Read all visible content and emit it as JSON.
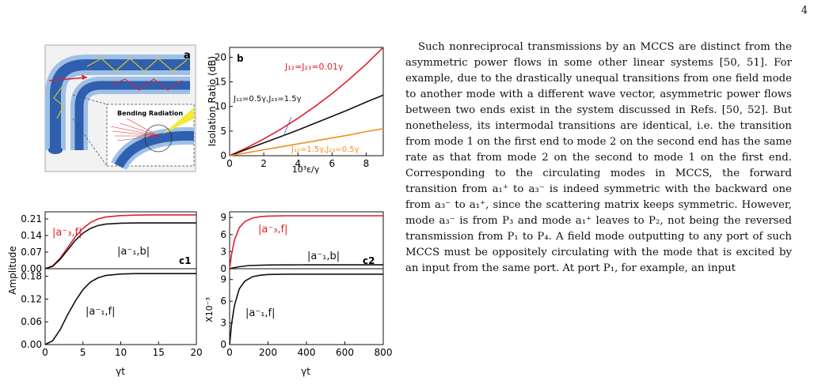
{
  "page_number": "4",
  "panel_a": {
    "label": "a",
    "callout": "Bending Radiation"
  },
  "panel_b": {
    "label": "b",
    "ylabel": "Isolation Ratio (dB)",
    "xlabel": "10³ε/γ",
    "yticks": [
      "0",
      "5",
      "10",
      "15",
      "20"
    ],
    "xticks": [
      "0",
      "2",
      "4",
      "6",
      "8"
    ],
    "lbl_red": "J₁₂=J₂₃=0.01γ",
    "lbl_black": "J₁₂=0.5γ,J₂₃=1.5γ",
    "lbl_orange": "J₁₂=1.5γ,J₂₃=0.5γ"
  },
  "panel_c1": {
    "label": "c1",
    "ylabel": "Amplitude",
    "xlabel": "γt",
    "top_yticks": [
      "0.00",
      "0.07",
      "0.14",
      "0.21"
    ],
    "bot_yticks": [
      "0.00",
      "0.06",
      "0.12",
      "0.18"
    ],
    "xticks": [
      "0",
      "5",
      "10",
      "15",
      "20"
    ],
    "lbl_a3f": "|a⁻₃,f|",
    "lbl_a1b": "|a⁻₁,b|",
    "lbl_a1f": "|a⁻₁,f|"
  },
  "panel_c2": {
    "label": "c2",
    "ylabel": "X10⁻³",
    "xlabel": "γt",
    "top_yticks": [
      "0",
      "3",
      "6",
      "9"
    ],
    "bot_yticks": [
      "0",
      "3",
      "6",
      "9"
    ],
    "xticks": [
      "0",
      "200",
      "400",
      "600",
      "800"
    ],
    "lbl_a3f": "|a⁻₃,f|",
    "lbl_a1b": "|a⁻₁,b|",
    "lbl_a1f": "|a⁻₁,f|"
  },
  "colors": {
    "red": "#e0202a",
    "black": "#111111",
    "orange": "#f0901e",
    "blue": "#2f5fae",
    "lightblue": "#9ec0e6"
  },
  "chart_data": [
    {
      "type": "line",
      "id": "b",
      "xlim": [
        0,
        9
      ],
      "ylim": [
        0,
        22
      ],
      "series": [
        {
          "name": "J₁₂=J₂₃=0.01γ",
          "color": "#e0202a",
          "x": [
            0,
            1,
            2,
            3,
            4,
            5,
            6,
            7,
            8,
            9
          ],
          "y": [
            0,
            1.6,
            3.4,
            5.4,
            7.6,
            10.0,
            12.6,
            15.5,
            18.6,
            22.0
          ]
        },
        {
          "name": "J₁₂=0.5γ,J₂₃=1.5γ",
          "color": "#111111",
          "x": [
            0,
            1,
            2,
            3,
            4,
            5,
            6,
            7,
            8,
            9
          ],
          "y": [
            0,
            1.3,
            2.6,
            3.9,
            5.2,
            6.6,
            8.0,
            9.4,
            10.9,
            12.3
          ]
        },
        {
          "name": "J₁₂=1.5γ,J₂₃=0.5γ",
          "color": "#f0901e",
          "x": [
            0,
            1,
            2,
            3,
            4,
            5,
            6,
            7,
            8,
            9
          ],
          "y": [
            0,
            0.6,
            1.2,
            1.8,
            2.4,
            3.0,
            3.6,
            4.2,
            4.9,
            5.5
          ]
        }
      ]
    },
    {
      "type": "line",
      "id": "c1_top",
      "xlim": [
        0,
        20
      ],
      "ylim": [
        0,
        0.24
      ],
      "series": [
        {
          "name": "|a⁻₃,f|",
          "color": "#e0202a",
          "x": [
            0,
            1,
            2,
            3,
            4,
            5,
            6,
            7,
            8,
            10,
            12,
            14,
            16,
            18,
            20
          ],
          "y": [
            0,
            0.012,
            0.045,
            0.09,
            0.135,
            0.17,
            0.195,
            0.21,
            0.218,
            0.224,
            0.226,
            0.227,
            0.227,
            0.227,
            0.227
          ]
        },
        {
          "name": "|a⁻₁,b|",
          "color": "#111111",
          "x": [
            0,
            1,
            2,
            3,
            4,
            5,
            6,
            7,
            8,
            10,
            12,
            14,
            16,
            18,
            20
          ],
          "y": [
            0,
            0.01,
            0.04,
            0.08,
            0.12,
            0.15,
            0.17,
            0.182,
            0.188,
            0.192,
            0.193,
            0.193,
            0.193,
            0.193,
            0.193
          ]
        }
      ]
    },
    {
      "type": "line",
      "id": "c1_bot",
      "xlim": [
        0,
        20
      ],
      "ylim": [
        0,
        0.2
      ],
      "series": [
        {
          "name": "|a⁻₁,f|",
          "color": "#111111",
          "x": [
            0,
            1,
            2,
            3,
            4,
            5,
            6,
            7,
            8,
            10,
            12,
            14,
            16,
            18,
            20
          ],
          "y": [
            0,
            0.01,
            0.04,
            0.08,
            0.115,
            0.145,
            0.165,
            0.176,
            0.182,
            0.186,
            0.187,
            0.187,
            0.187,
            0.187,
            0.187
          ]
        }
      ]
    },
    {
      "type": "line",
      "id": "c2_top",
      "xlim": [
        0,
        800
      ],
      "ylim": [
        0,
        10
      ],
      "series": [
        {
          "name": "|a⁻₃,f|",
          "color": "#e0202a",
          "x": [
            0,
            10,
            25,
            50,
            80,
            120,
            160,
            200,
            300,
            400,
            500,
            600,
            700,
            800
          ],
          "y": [
            0,
            2.5,
            5.0,
            7.2,
            8.3,
            8.9,
            9.15,
            9.25,
            9.3,
            9.3,
            9.3,
            9.3,
            9.3,
            9.3
          ]
        },
        {
          "name": "|a⁻₁,b|",
          "color": "#111111",
          "x": [
            0,
            20,
            50,
            100,
            200,
            300,
            400,
            500,
            600,
            700,
            800
          ],
          "y": [
            0,
            0.15,
            0.35,
            0.55,
            0.65,
            0.67,
            0.68,
            0.68,
            0.68,
            0.68,
            0.68
          ]
        }
      ]
    },
    {
      "type": "line",
      "id": "c2_bot",
      "xlim": [
        0,
        800
      ],
      "ylim": [
        0,
        10.5
      ],
      "series": [
        {
          "name": "|a⁻₁,f|",
          "color": "#111111",
          "x": [
            0,
            10,
            25,
            50,
            80,
            120,
            160,
            200,
            300,
            400,
            500,
            600,
            700,
            800
          ],
          "y": [
            0,
            2.8,
            5.4,
            7.7,
            8.8,
            9.4,
            9.6,
            9.7,
            9.75,
            9.75,
            9.75,
            9.75,
            9.75,
            9.75
          ]
        }
      ]
    }
  ],
  "body_text": [
    "Such nonreciprocal transmissions by an MCCS are distinct from the asymmetric power flows in some other linear systems [50, 51]. For example, due to the drastically unequal transitions from one field mode to another mode with a different wave vector, asymmetric power flows between two ends exist in the system discussed in Refs. [50, 52]. But nonetheless, its intermodal transitions are identical, i.e. the transition from mode 1 on the first end to mode 2 on the second end has the same rate as that from mode 2 on the second to mode 1 on the first end. Corresponding to the circulating modes in MCCS, the forward transition from a₁⁺ to a₃⁻ is indeed symmetric with the backward one from a₃⁻ to a₁⁺, since the scattering matrix keeps symmetric. However, mode a₃⁻ is from P₃ and mode a₁⁺ leaves to P₂, not being the reversed transmission from P₁ to P₄. A field mode outputting to any port of such MCCS must be oppositely circulating with the mode that is excited by an input from the same port. At port P₁, for example, an input"
  ]
}
